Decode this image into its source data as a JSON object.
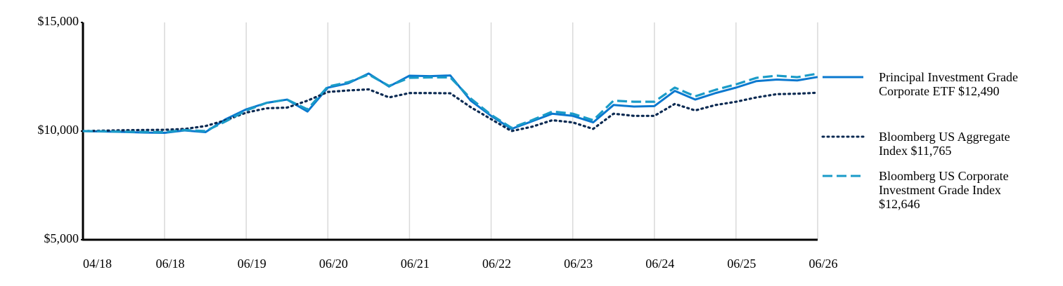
{
  "chart_data": {
    "type": "line",
    "categories": [
      "04/18",
      null,
      null,
      null,
      "06/18",
      null,
      null,
      null,
      "06/19",
      null,
      null,
      null,
      "06/20",
      null,
      null,
      null,
      "06/21",
      null,
      null,
      null,
      "06/22",
      null,
      null,
      null,
      "06/23",
      null,
      null,
      null,
      "06/24",
      null,
      null,
      null,
      "06/25",
      null,
      null,
      null,
      "06/26"
    ],
    "series": [
      {
        "name": "Principal Investment Grade Corporate ETF $12,490",
        "color": "#0a78cf",
        "style": "solid",
        "values": [
          10000,
          9980,
          9960,
          9930,
          9920,
          10030,
          9950,
          10550,
          11000,
          11300,
          11450,
          10900,
          12000,
          12200,
          12650,
          12050,
          12550,
          12530,
          12560,
          11400,
          10700,
          10100,
          10450,
          10800,
          10700,
          10400,
          11200,
          11130,
          11150,
          11850,
          11450,
          11750,
          12000,
          12300,
          12370,
          12330,
          12490
        ]
      },
      {
        "name": "Bloomberg US Aggregate Index $11,765",
        "color": "#0b2a52",
        "style": "dotted",
        "values": [
          10000,
          10020,
          10040,
          10050,
          10060,
          10100,
          10230,
          10500,
          10850,
          11050,
          11080,
          11400,
          11800,
          11870,
          11920,
          11550,
          11750,
          11750,
          11740,
          11100,
          10550,
          10000,
          10200,
          10500,
          10400,
          10100,
          10800,
          10700,
          10700,
          11250,
          10950,
          11200,
          11350,
          11550,
          11700,
          11720,
          11765
        ]
      },
      {
        "name": "Bloomberg US Corporate Investment Grade Index $12,646",
        "color": "#1a9bc8",
        "style": "dashed",
        "values": [
          10000,
          9990,
          9970,
          9960,
          9950,
          10050,
          10000,
          10450,
          10950,
          11300,
          11450,
          11000,
          12050,
          12250,
          12600,
          12080,
          12450,
          12470,
          12470,
          11500,
          10750,
          10150,
          10500,
          10900,
          10800,
          10500,
          11400,
          11350,
          11350,
          12000,
          11600,
          11900,
          12150,
          12450,
          12550,
          12480,
          12646
        ]
      }
    ],
    "ylim": [
      5000,
      15000
    ],
    "yticks": [
      {
        "value": 5000,
        "label": "$5,000"
      },
      {
        "value": 10000,
        "label": "$10,000"
      },
      {
        "value": 15000,
        "label": "$15,000"
      }
    ],
    "grid": true,
    "legend": "right"
  }
}
